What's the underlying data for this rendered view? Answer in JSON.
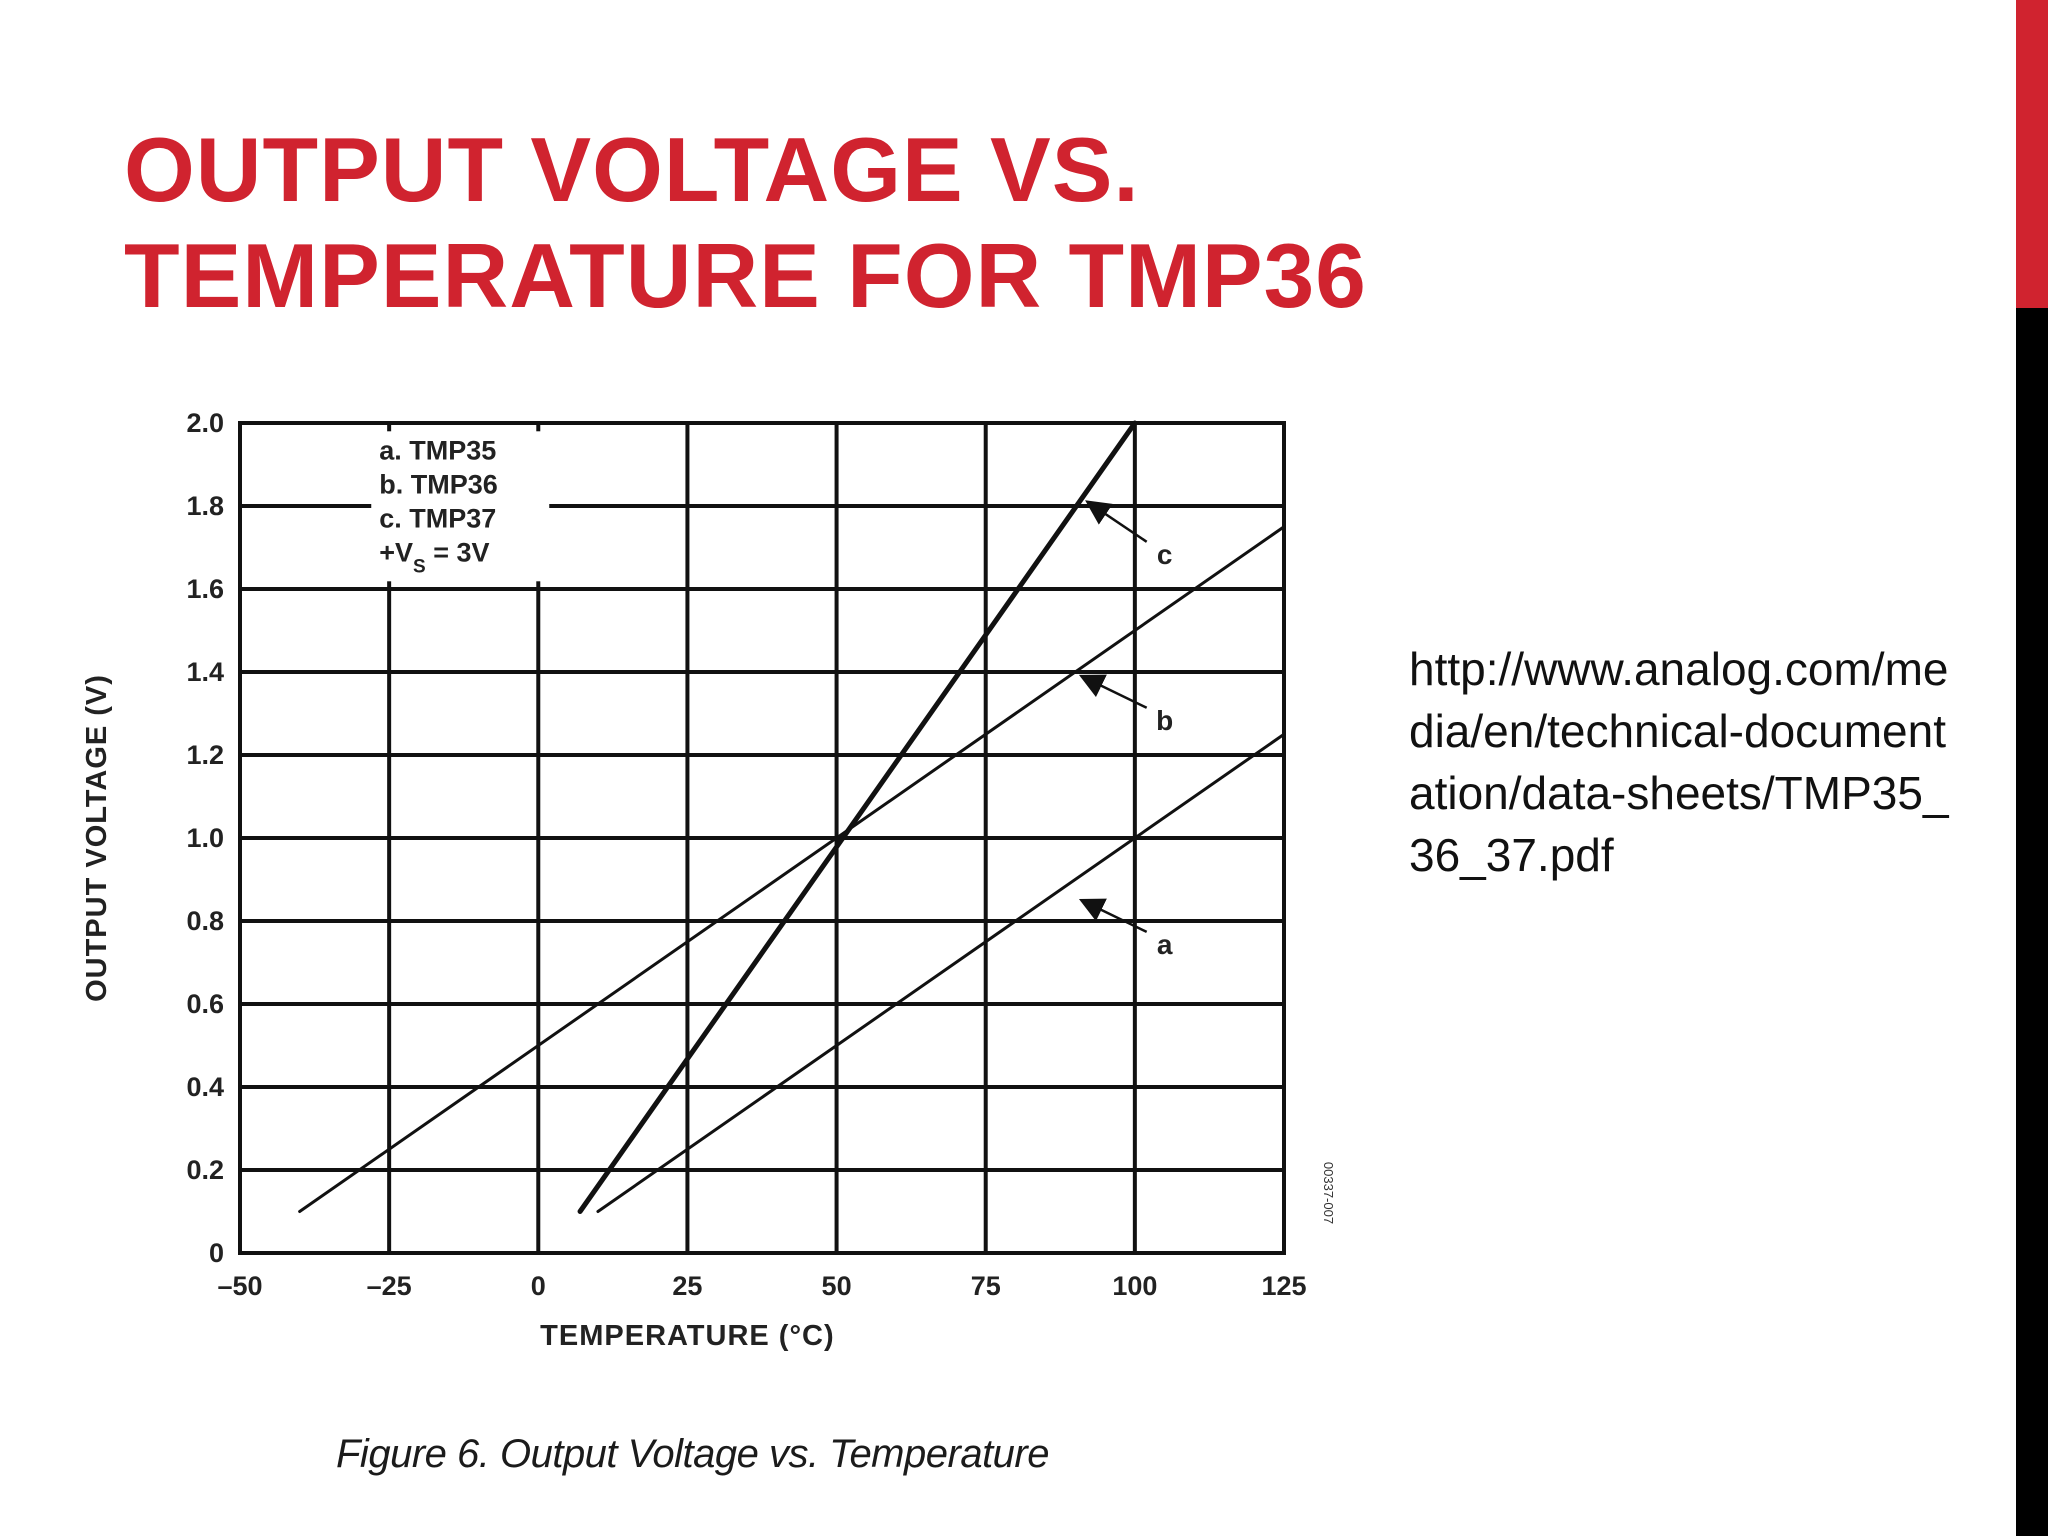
{
  "colors": {
    "accent_red": "#D0232F",
    "accent_black": "#000000",
    "title_red": "#D0232F",
    "ink": "#111111"
  },
  "slide": {
    "title_line1": "OUTPUT VOLTAGE VS.",
    "title_line2": "TEMPERATURE FOR TMP36",
    "source_url": "http://www.analog.com/media/en/technical-documentation/data-sheets/TMP35_36_37.pdf",
    "caption": "Figure 6. Output Voltage vs. Temperature"
  },
  "chart_data": {
    "type": "line",
    "title": "",
    "xlabel": "TEMPERATURE (°C)",
    "ylabel": "OUTPUT VOLTAGE (V)",
    "xlim": [
      -50,
      125
    ],
    "ylim": [
      0,
      2.0
    ],
    "x_ticks": [
      -50,
      -25,
      0,
      25,
      50,
      75,
      100,
      125
    ],
    "x_tick_labels": [
      "–50",
      "–25",
      "0",
      "25",
      "50",
      "75",
      "100",
      "125"
    ],
    "y_ticks": [
      0,
      0.2,
      0.4,
      0.6,
      0.8,
      1.0,
      1.2,
      1.4,
      1.6,
      1.8,
      2.0
    ],
    "y_tick_labels": [
      "0",
      "0.2",
      "0.4",
      "0.6",
      "0.8",
      "1.0",
      "1.2",
      "1.4",
      "1.6",
      "1.8",
      "2.0"
    ],
    "grid": true,
    "legend": {
      "placement": "top-left",
      "entries": [
        "a.  TMP35",
        "b.  TMP36",
        "c.  TMP37"
      ],
      "supply_prefix": "+V",
      "supply_sub": "S",
      "supply_suffix": " = 3V"
    },
    "figure_code": "00337-007",
    "series": [
      {
        "name": "a",
        "x": [
          10,
          125
        ],
        "y": [
          0.1,
          1.25
        ],
        "label_at": [
          90,
          0.86
        ],
        "label_pos": [
          105,
          0.74
        ]
      },
      {
        "name": "b",
        "x": [
          -40,
          125
        ],
        "y": [
          0.1,
          1.75
        ],
        "label_at": [
          90,
          1.4
        ],
        "label_pos": [
          105,
          1.28
        ]
      },
      {
        "name": "c",
        "x": [
          7,
          100
        ],
        "y": [
          0.1,
          2.0
        ],
        "label_at": [
          91,
          1.82
        ],
        "label_pos": [
          105,
          1.68
        ]
      }
    ]
  }
}
